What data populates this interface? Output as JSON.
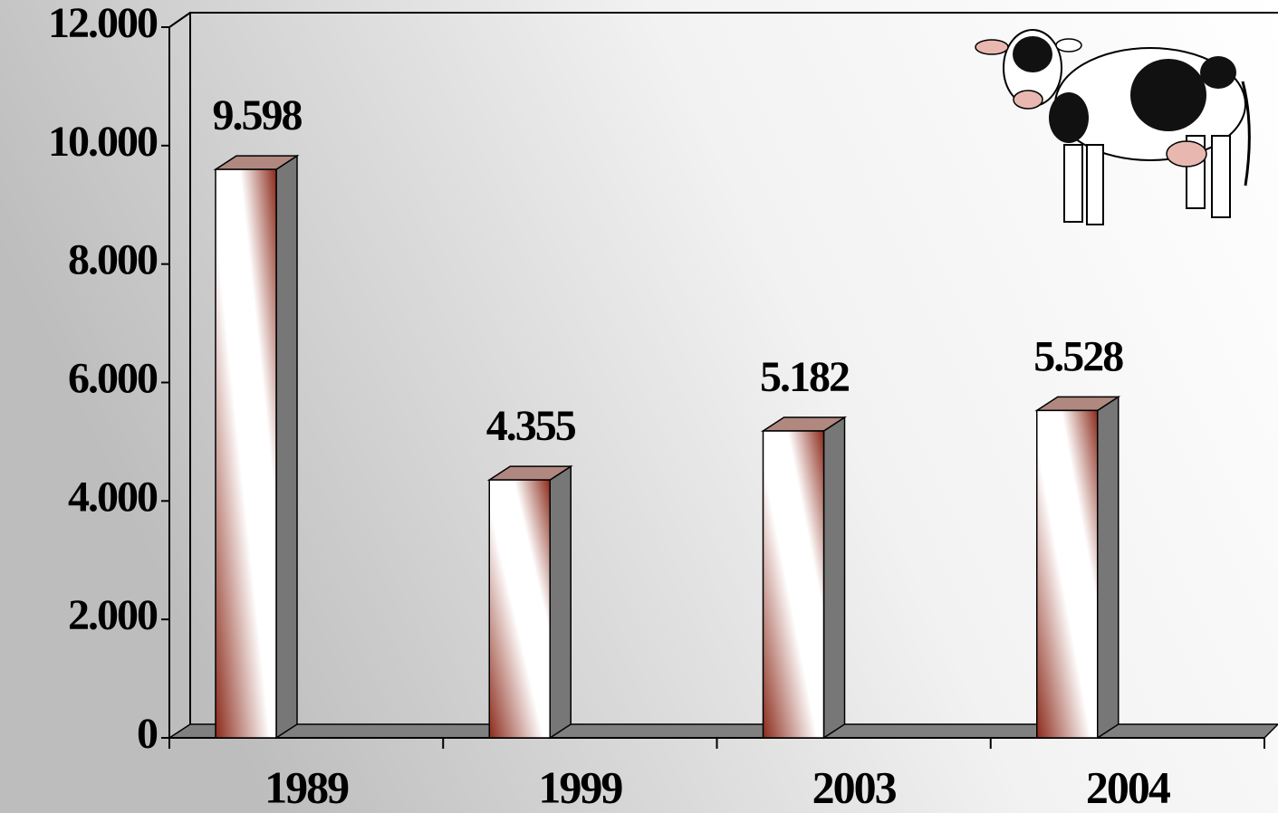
{
  "chart_data": {
    "type": "bar3d",
    "categories": [
      "1989",
      "1999",
      "2003",
      "2004"
    ],
    "values": [
      9598,
      4355,
      5182,
      5528
    ],
    "value_labels": [
      "9.598",
      "4.355",
      "5.182",
      "5.528"
    ],
    "color": "#8b2a1a",
    "ylim": [
      0,
      12000
    ],
    "yticks": [
      0,
      {
        "value": 2000,
        "label": "2.000"
      },
      {
        "value": 4000,
        "label": "4.000"
      },
      {
        "value": 6000,
        "label": "6.000"
      },
      {
        "value": 8000,
        "label": "8.000"
      },
      {
        "value": 10000,
        "label": "10.000"
      },
      {
        "value": 12000,
        "label": "12.000"
      }
    ]
  }
}
